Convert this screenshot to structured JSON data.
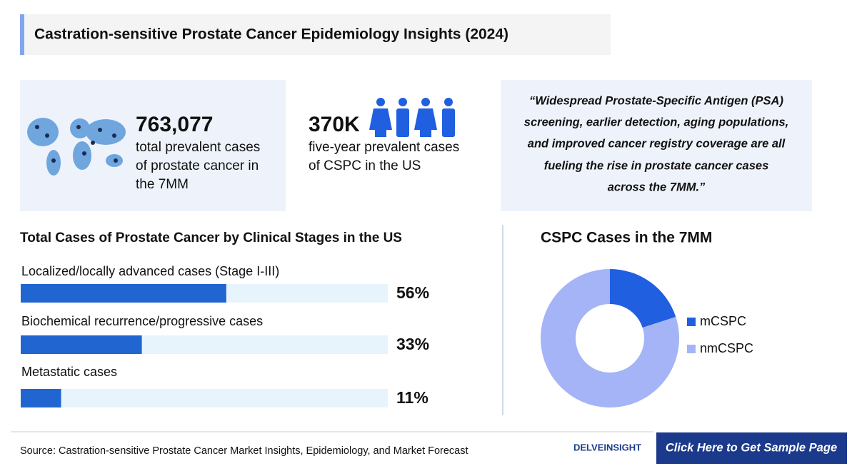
{
  "header": {
    "title": "Castration-sensitive Prostate Cancer Epidemiology Insights (2024)"
  },
  "stats": [
    {
      "value": "763,077",
      "lines": [
        "total prevalent cases",
        "of prostate cancer in",
        "the 7MM"
      ]
    },
    {
      "value": "370K",
      "lines": [
        "five-year prevalent cases",
        "of CSPC in the US"
      ]
    }
  ],
  "quote": {
    "lines": [
      "“Widespread Prostate-Specific Antigen (PSA)",
      "screening, earlier detection, aging populations,",
      "and improved cancer registry coverage are all",
      "fueling the rise in prostate cancer cases",
      "across the 7MM.”"
    ]
  },
  "chart_data": [
    {
      "type": "hbar",
      "title": "Total Cases of Prostate Cancer by Clinical Stages in the US",
      "categories": [
        "Localized/locally advanced cases (Stage I-III)",
        "Biochemical recurrence/progressive cases",
        "Metastatic cases"
      ],
      "values": [
        56,
        33,
        11
      ],
      "value_labels": [
        "56%",
        "33%",
        "11%"
      ],
      "xlim": [
        0,
        100
      ],
      "color": "#2166d0",
      "track_color": "#e8f4fb"
    },
    {
      "type": "donut",
      "title": "CSPC Cases in the 7MM",
      "categories": [
        "mCSPC",
        "nmCSPC"
      ],
      "values": [
        20,
        80
      ],
      "colors": [
        "#1f5fe0",
        "#a4b4f6"
      ],
      "legend": "right"
    }
  ],
  "footer": {
    "source": "Source: Castration-sensitive Prostate Cancer Market Insights, Epidemiology, and Market Forecast",
    "logo": "DELVEINSIGHT",
    "button": "Click Here to Get Sample Page"
  }
}
